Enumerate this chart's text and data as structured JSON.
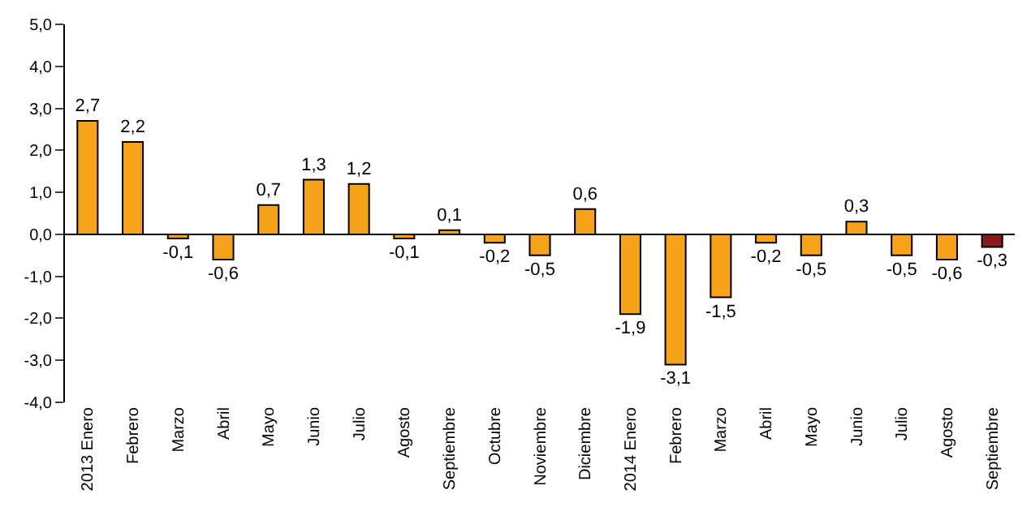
{
  "chart_data": {
    "type": "bar",
    "categories": [
      "2013 Enero",
      "Febrero",
      "Marzo",
      "Abril",
      "Mayo",
      "Junio",
      "Julio",
      "Agosto",
      "Septiembre",
      "Octubre",
      "Noviembre",
      "Diciembre",
      "2014 Enero",
      "Febrero",
      "Marzo",
      "Abril",
      "Mayo",
      "Junio",
      "Julio",
      "Agosto",
      "Septiembre"
    ],
    "values": [
      2.7,
      2.2,
      -0.1,
      -0.6,
      0.7,
      1.3,
      1.2,
      -0.1,
      0.1,
      -0.2,
      -0.5,
      0.6,
      -1.9,
      -3.1,
      -1.5,
      -0.2,
      -0.5,
      0.3,
      -0.5,
      -0.6,
      -0.3
    ],
    "value_labels": [
      "2,7",
      "2,2",
      "-0,1",
      "-0,6",
      "0,7",
      "1,3",
      "1,2",
      "-0,1",
      "0,1",
      "-0,2",
      "-0,5",
      "0,6",
      "-1,9",
      "-3,1",
      "-1,5",
      "-0,2",
      "-0,5",
      "0,3",
      "-0,5",
      "-0,6",
      "-0,3"
    ],
    "colors": [
      "#f7a21b",
      "#f7a21b",
      "#f7a21b",
      "#f7a21b",
      "#f7a21b",
      "#f7a21b",
      "#f7a21b",
      "#f7a21b",
      "#f7a21b",
      "#f7a21b",
      "#f7a21b",
      "#f7a21b",
      "#f7a21b",
      "#f7a21b",
      "#f7a21b",
      "#f7a21b",
      "#f7a21b",
      "#f7a21b",
      "#f7a21b",
      "#f7a21b",
      "#8b1a1a"
    ],
    "ylim": [
      -4,
      5
    ],
    "yticks": [
      {
        "value": -4,
        "label": "-4,0"
      },
      {
        "value": -3,
        "label": "-3,0"
      },
      {
        "value": -2,
        "label": "-2,0"
      },
      {
        "value": -1,
        "label": "-1,0"
      },
      {
        "value": 0,
        "label": "0,0"
      },
      {
        "value": 1,
        "label": "1,0"
      },
      {
        "value": 2,
        "label": "2,0"
      },
      {
        "value": 3,
        "label": "3,0"
      },
      {
        "value": 4,
        "label": "4,0"
      },
      {
        "value": 5,
        "label": "5,0"
      }
    ],
    "legend": false
  }
}
